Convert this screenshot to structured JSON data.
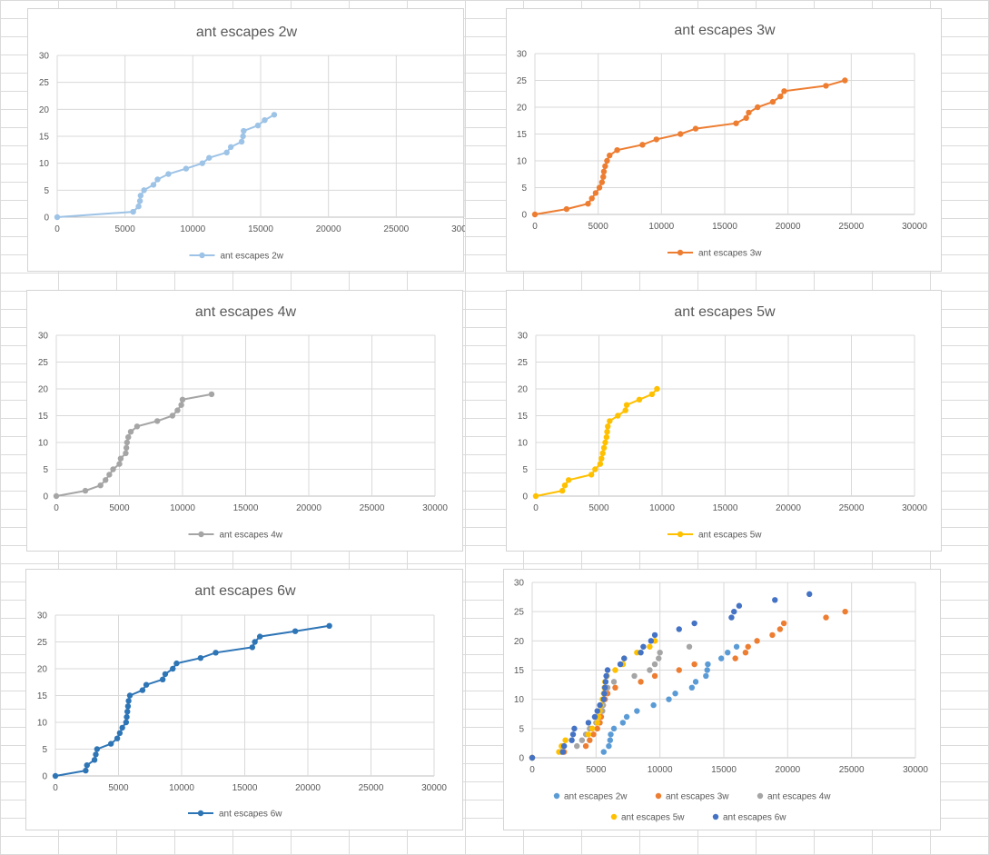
{
  "chart_data": [
    {
      "type": "line",
      "title": "ant escapes 2w",
      "xlim": [
        0,
        30000
      ],
      "ylim": [
        0,
        30
      ],
      "xticks": [
        0,
        5000,
        10000,
        15000,
        20000,
        25000,
        30000
      ],
      "yticks": [
        0,
        5,
        10,
        15,
        20,
        25,
        30
      ],
      "legend_position": "bottom",
      "series": [
        {
          "name": "ant escapes 2w",
          "color": "#9dc3e6",
          "points": [
            [
              0,
              0
            ],
            [
              5600,
              1
            ],
            [
              6000,
              2
            ],
            [
              6100,
              3
            ],
            [
              6150,
              4
            ],
            [
              6400,
              5
            ],
            [
              7100,
              6
            ],
            [
              7400,
              7
            ],
            [
              8200,
              8
            ],
            [
              9500,
              9
            ],
            [
              10700,
              10
            ],
            [
              11200,
              11
            ],
            [
              12500,
              12
            ],
            [
              12800,
              13
            ],
            [
              13600,
              14
            ],
            [
              13700,
              15
            ],
            [
              13750,
              16
            ],
            [
              14800,
              17
            ],
            [
              15300,
              18
            ],
            [
              16000,
              19
            ]
          ]
        }
      ]
    },
    {
      "type": "line",
      "title": "ant escapes 3w",
      "xlim": [
        0,
        30000
      ],
      "ylim": [
        0,
        30
      ],
      "xticks": [
        0,
        5000,
        10000,
        15000,
        20000,
        25000,
        30000
      ],
      "yticks": [
        0,
        5,
        10,
        15,
        20,
        25,
        30
      ],
      "legend_position": "bottom",
      "series": [
        {
          "name": "ant escapes 3w",
          "color": "#ed7d31",
          "points": [
            [
              0,
              0
            ],
            [
              2500,
              1
            ],
            [
              4200,
              2
            ],
            [
              4500,
              3
            ],
            [
              4800,
              4
            ],
            [
              5100,
              5
            ],
            [
              5300,
              6
            ],
            [
              5400,
              7
            ],
            [
              5450,
              8
            ],
            [
              5550,
              9
            ],
            [
              5700,
              10
            ],
            [
              5900,
              11
            ],
            [
              6500,
              12
            ],
            [
              8500,
              13
            ],
            [
              9600,
              14
            ],
            [
              11500,
              15
            ],
            [
              12700,
              16
            ],
            [
              15900,
              17
            ],
            [
              16700,
              18
            ],
            [
              16900,
              19
            ],
            [
              17600,
              20
            ],
            [
              18800,
              21
            ],
            [
              19400,
              22
            ],
            [
              19700,
              23
            ],
            [
              23000,
              24
            ],
            [
              24500,
              25
            ]
          ]
        }
      ]
    },
    {
      "type": "line",
      "title": "ant escapes 4w",
      "xlim": [
        0,
        30000
      ],
      "ylim": [
        0,
        30
      ],
      "xticks": [
        0,
        5000,
        10000,
        15000,
        20000,
        25000,
        30000
      ],
      "yticks": [
        0,
        5,
        10,
        15,
        20,
        25,
        30
      ],
      "legend_position": "bottom",
      "series": [
        {
          "name": "ant escapes 4w",
          "color": "#a5a5a5",
          "points": [
            [
              0,
              0
            ],
            [
              2300,
              1
            ],
            [
              3500,
              2
            ],
            [
              3900,
              3
            ],
            [
              4200,
              4
            ],
            [
              4500,
              5
            ],
            [
              5000,
              6
            ],
            [
              5100,
              7
            ],
            [
              5500,
              8
            ],
            [
              5550,
              9
            ],
            [
              5600,
              10
            ],
            [
              5700,
              11
            ],
            [
              5900,
              12
            ],
            [
              6400,
              13
            ],
            [
              8000,
              14
            ],
            [
              9200,
              15
            ],
            [
              9600,
              16
            ],
            [
              9900,
              17
            ],
            [
              10000,
              18
            ],
            [
              12300,
              19
            ]
          ]
        }
      ]
    },
    {
      "type": "line",
      "title": "ant escapes 5w",
      "xlim": [
        0,
        30000
      ],
      "ylim": [
        0,
        30
      ],
      "xticks": [
        0,
        5000,
        10000,
        15000,
        20000,
        25000,
        30000
      ],
      "yticks": [
        0,
        5,
        10,
        15,
        20,
        25,
        30
      ],
      "legend_position": "bottom",
      "series": [
        {
          "name": "ant escapes 5w",
          "color": "#ffc000",
          "points": [
            [
              0,
              0
            ],
            [
              2100,
              1
            ],
            [
              2300,
              2
            ],
            [
              2600,
              3
            ],
            [
              4400,
              4
            ],
            [
              4700,
              5
            ],
            [
              5100,
              6
            ],
            [
              5200,
              7
            ],
            [
              5300,
              8
            ],
            [
              5400,
              9
            ],
            [
              5500,
              10
            ],
            [
              5600,
              11
            ],
            [
              5650,
              12
            ],
            [
              5700,
              13
            ],
            [
              5850,
              14
            ],
            [
              6500,
              15
            ],
            [
              7100,
              16
            ],
            [
              7200,
              17
            ],
            [
              8200,
              18
            ],
            [
              9200,
              19
            ],
            [
              9600,
              20
            ]
          ]
        }
      ]
    },
    {
      "type": "line",
      "title": "ant escapes 6w",
      "xlim": [
        0,
        30000
      ],
      "ylim": [
        0,
        30
      ],
      "xticks": [
        0,
        5000,
        10000,
        15000,
        20000,
        25000,
        30000
      ],
      "yticks": [
        0,
        5,
        10,
        15,
        20,
        25,
        30
      ],
      "legend_position": "bottom",
      "series": [
        {
          "name": "ant escapes 6w",
          "color": "#2e75b6",
          "points": [
            [
              0,
              0
            ],
            [
              2400,
              1
            ],
            [
              2500,
              2
            ],
            [
              3100,
              3
            ],
            [
              3200,
              4
            ],
            [
              3300,
              5
            ],
            [
              4400,
              6
            ],
            [
              4900,
              7
            ],
            [
              5100,
              8
            ],
            [
              5300,
              9
            ],
            [
              5600,
              10
            ],
            [
              5650,
              11
            ],
            [
              5700,
              12
            ],
            [
              5750,
              13
            ],
            [
              5800,
              14
            ],
            [
              5900,
              15
            ],
            [
              6900,
              16
            ],
            [
              7200,
              17
            ],
            [
              8500,
              18
            ],
            [
              8700,
              19
            ],
            [
              9300,
              20
            ],
            [
              9600,
              21
            ],
            [
              11500,
              22
            ],
            [
              12700,
              23
            ],
            [
              15600,
              24
            ],
            [
              15800,
              25
            ],
            [
              16200,
              26
            ],
            [
              19000,
              27
            ],
            [
              21700,
              28
            ]
          ]
        }
      ]
    },
    {
      "type": "scatter",
      "title": "",
      "xlim": [
        0,
        30000
      ],
      "ylim": [
        0,
        30
      ],
      "xticks": [
        0,
        5000,
        10000,
        15000,
        20000,
        25000,
        30000
      ],
      "yticks": [
        0,
        5,
        10,
        15,
        20,
        25,
        30
      ],
      "legend_position": "bottom",
      "series": [
        {
          "name": "ant escapes 2w",
          "color": "#5b9bd5",
          "points": [
            [
              0,
              0
            ],
            [
              5600,
              1
            ],
            [
              6000,
              2
            ],
            [
              6100,
              3
            ],
            [
              6150,
              4
            ],
            [
              6400,
              5
            ],
            [
              7100,
              6
            ],
            [
              7400,
              7
            ],
            [
              8200,
              8
            ],
            [
              9500,
              9
            ],
            [
              10700,
              10
            ],
            [
              11200,
              11
            ],
            [
              12500,
              12
            ],
            [
              12800,
              13
            ],
            [
              13600,
              14
            ],
            [
              13700,
              15
            ],
            [
              13750,
              16
            ],
            [
              14800,
              17
            ],
            [
              15300,
              18
            ],
            [
              16000,
              19
            ]
          ]
        },
        {
          "name": "ant escapes 3w",
          "color": "#ed7d31",
          "points": [
            [
              0,
              0
            ],
            [
              2500,
              1
            ],
            [
              4200,
              2
            ],
            [
              4500,
              3
            ],
            [
              4800,
              4
            ],
            [
              5100,
              5
            ],
            [
              5300,
              6
            ],
            [
              5400,
              7
            ],
            [
              5450,
              8
            ],
            [
              5550,
              9
            ],
            [
              5700,
              10
            ],
            [
              5900,
              11
            ],
            [
              6500,
              12
            ],
            [
              8500,
              13
            ],
            [
              9600,
              14
            ],
            [
              11500,
              15
            ],
            [
              12700,
              16
            ],
            [
              15900,
              17
            ],
            [
              16700,
              18
            ],
            [
              16900,
              19
            ],
            [
              17600,
              20
            ],
            [
              18800,
              21
            ],
            [
              19400,
              22
            ],
            [
              19700,
              23
            ],
            [
              23000,
              24
            ],
            [
              24500,
              25
            ]
          ]
        },
        {
          "name": "ant escapes 4w",
          "color": "#a5a5a5",
          "points": [
            [
              0,
              0
            ],
            [
              2300,
              1
            ],
            [
              3500,
              2
            ],
            [
              3900,
              3
            ],
            [
              4200,
              4
            ],
            [
              4500,
              5
            ],
            [
              5000,
              6
            ],
            [
              5100,
              7
            ],
            [
              5500,
              8
            ],
            [
              5550,
              9
            ],
            [
              5600,
              10
            ],
            [
              5700,
              11
            ],
            [
              5900,
              12
            ],
            [
              6400,
              13
            ],
            [
              8000,
              14
            ],
            [
              9200,
              15
            ],
            [
              9600,
              16
            ],
            [
              9900,
              17
            ],
            [
              10000,
              18
            ],
            [
              12300,
              19
            ]
          ]
        },
        {
          "name": "ant escapes 5w",
          "color": "#ffc000",
          "points": [
            [
              0,
              0
            ],
            [
              2100,
              1
            ],
            [
              2300,
              2
            ],
            [
              2600,
              3
            ],
            [
              4400,
              4
            ],
            [
              4700,
              5
            ],
            [
              5100,
              6
            ],
            [
              5200,
              7
            ],
            [
              5300,
              8
            ],
            [
              5400,
              9
            ],
            [
              5500,
              10
            ],
            [
              5600,
              11
            ],
            [
              5650,
              12
            ],
            [
              5700,
              13
            ],
            [
              5850,
              14
            ],
            [
              6500,
              15
            ],
            [
              7100,
              16
            ],
            [
              7200,
              17
            ],
            [
              8200,
              18
            ],
            [
              9200,
              19
            ],
            [
              9600,
              20
            ]
          ]
        },
        {
          "name": "ant escapes 6w",
          "color": "#4472c4",
          "points": [
            [
              0,
              0
            ],
            [
              2400,
              1
            ],
            [
              2500,
              2
            ],
            [
              3100,
              3
            ],
            [
              3200,
              4
            ],
            [
              3300,
              5
            ],
            [
              4400,
              6
            ],
            [
              4900,
              7
            ],
            [
              5100,
              8
            ],
            [
              5300,
              9
            ],
            [
              5600,
              10
            ],
            [
              5650,
              11
            ],
            [
              5700,
              12
            ],
            [
              5750,
              13
            ],
            [
              5800,
              14
            ],
            [
              5900,
              15
            ],
            [
              6900,
              16
            ],
            [
              7200,
              17
            ],
            [
              8500,
              18
            ],
            [
              8700,
              19
            ],
            [
              9300,
              20
            ],
            [
              9600,
              21
            ],
            [
              11500,
              22
            ],
            [
              12700,
              23
            ],
            [
              15600,
              24
            ],
            [
              15800,
              25
            ],
            [
              16200,
              26
            ],
            [
              19000,
              27
            ],
            [
              21700,
              28
            ]
          ]
        }
      ]
    }
  ]
}
